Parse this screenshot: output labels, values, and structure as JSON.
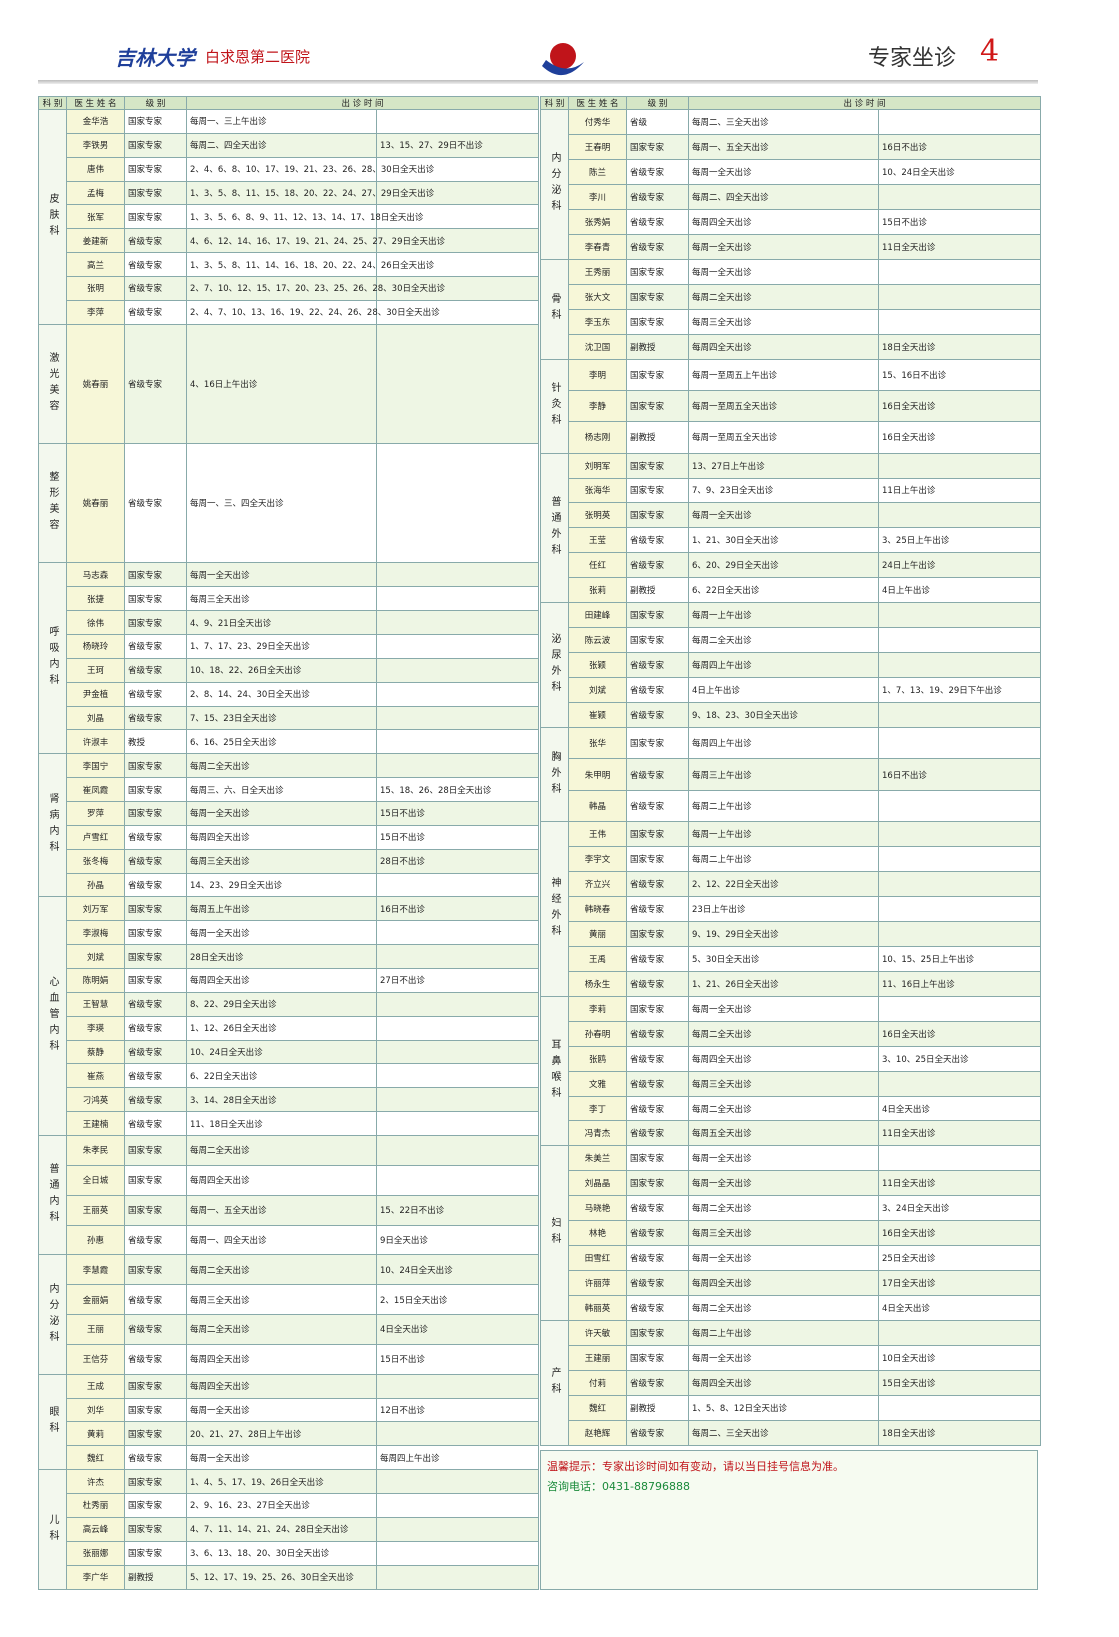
{
  "header": {
    "brand": "吉林大学",
    "hospital": "白求恩第二医院",
    "section": "专家坐诊",
    "page": "4"
  },
  "columns": [
    "科 别",
    "医 生 姓 名",
    "级 别",
    "出 诊 时 间"
  ],
  "left": [
    {
      "dept": "皮肤科",
      "rows": [
        [
          "金华浩",
          "国家专家",
          "每周一、三上午出诊",
          ""
        ],
        [
          "李铁男",
          "国家专家",
          "每周二、四全天出诊",
          "13、15、27、29日不出诊"
        ],
        [
          "唐伟",
          "国家专家",
          "2、4、6、8、10、17、19、21、23、26、28、30日全天出诊",
          ""
        ],
        [
          "孟梅",
          "国家专家",
          "1、3、5、8、11、15、18、20、22、24、27、29日全天出诊",
          ""
        ],
        [
          "张军",
          "国家专家",
          "1、3、5、6、8、9、11、12、13、14、17、18日全天出诊",
          ""
        ],
        [
          "姜建新",
          "省级专家",
          "4、6、12、14、16、17、19、21、24、25、27、29日全天出诊",
          ""
        ],
        [
          "高兰",
          "省级专家",
          "1、3、5、8、11、14、16、18、20、22、24、26日全天出诊",
          ""
        ],
        [
          "张明",
          "省级专家",
          "2、7、10、12、15、17、20、23、25、26、28、30日全天出诊",
          ""
        ],
        [
          "李萍",
          "省级专家",
          "2、4、7、10、13、16、19、22、24、26、28、30日全天出诊",
          ""
        ]
      ]
    },
    {
      "dept": "激光美容",
      "rows": [
        [
          "姚春丽",
          "省级专家",
          "4、16日上午出诊",
          ""
        ]
      ]
    },
    {
      "dept": "整形美容",
      "rows": [
        [
          "姚春丽",
          "省级专家",
          "每周一、三、四全天出诊",
          ""
        ]
      ]
    },
    {
      "dept": "呼吸内科",
      "rows": [
        [
          "马志森",
          "国家专家",
          "每周一全天出诊",
          ""
        ],
        [
          "张捷",
          "国家专家",
          "每周三全天出诊",
          ""
        ],
        [
          "徐伟",
          "国家专家",
          "4、9、21日全天出诊",
          ""
        ],
        [
          "杨晓玲",
          "省级专家",
          "1、7、17、23、29日全天出诊",
          ""
        ],
        [
          "王珂",
          "省级专家",
          "10、18、22、26日全天出诊",
          ""
        ],
        [
          "尹金植",
          "省级专家",
          "2、8、14、24、30日全天出诊",
          ""
        ],
        [
          "刘晶",
          "省级专家",
          "7、15、23日全天出诊",
          ""
        ],
        [
          "许淑丰",
          "教授",
          "6、16、25日全天出诊",
          ""
        ]
      ]
    },
    {
      "dept": "肾病内科",
      "rows": [
        [
          "李国宁",
          "国家专家",
          "每周二全天出诊",
          ""
        ],
        [
          "崔凤霞",
          "国家专家",
          "每周三、六、日全天出诊",
          "15、18、26、28日全天出诊"
        ],
        [
          "罗萍",
          "国家专家",
          "每周一全天出诊",
          "15日不出诊"
        ],
        [
          "卢雪红",
          "省级专家",
          "每周四全天出诊",
          "15日不出诊"
        ],
        [
          "张冬梅",
          "省级专家",
          "每周三全天出诊",
          "28日不出诊"
        ],
        [
          "孙晶",
          "省级专家",
          "14、23、29日全天出诊",
          ""
        ]
      ]
    },
    {
      "dept": "心血管内科",
      "rows": [
        [
          "刘万军",
          "国家专家",
          "每周五上午出诊",
          "16日不出诊"
        ],
        [
          "李淑梅",
          "国家专家",
          "每周一全天出诊",
          ""
        ],
        [
          "刘斌",
          "国家专家",
          "28日全天出诊",
          ""
        ],
        [
          "陈明娟",
          "国家专家",
          "每周四全天出诊",
          "27日不出诊"
        ],
        [
          "王智慧",
          "省级专家",
          "8、22、29日全天出诊",
          ""
        ],
        [
          "李瑛",
          "省级专家",
          "1、12、26日全天出诊",
          ""
        ],
        [
          "蔡静",
          "省级专家",
          "10、24日全天出诊",
          ""
        ],
        [
          "崔燕",
          "省级专家",
          "6、22日全天出诊",
          ""
        ],
        [
          "刁鸿英",
          "省级专家",
          "3、14、28日全天出诊",
          ""
        ],
        [
          "王建楠",
          "省级专家",
          "11、18日全天出诊",
          ""
        ]
      ]
    },
    {
      "dept": "普通内科",
      "rows": [
        [
          "朱孝民",
          "国家专家",
          "每周二全天出诊",
          ""
        ],
        [
          "全日城",
          "国家专家",
          "每周四全天出诊",
          ""
        ],
        [
          "王丽英",
          "国家专家",
          "每周一、五全天出诊",
          "15、22日不出诊"
        ],
        [
          "孙惠",
          "省级专家",
          "每周一、四全天出诊",
          "9日全天出诊"
        ]
      ]
    },
    {
      "dept": "内分泌科",
      "rows": [
        [
          "李慧霞",
          "国家专家",
          "每周二全天出诊",
          "10、24日全天出诊"
        ],
        [
          "金丽娟",
          "省级专家",
          "每周三全天出诊",
          "2、15日全天出诊"
        ],
        [
          "王丽",
          "省级专家",
          "每周二全天出诊",
          "4日全天出诊"
        ],
        [
          "王信芬",
          "省级专家",
          "每周四全天出诊",
          "15日不出诊"
        ]
      ]
    },
    {
      "dept": "眼科",
      "rows": [
        [
          "王成",
          "国家专家",
          "每周四全天出诊",
          ""
        ],
        [
          "刘华",
          "国家专家",
          "每周一全天出诊",
          "12日不出诊"
        ],
        [
          "黄莉",
          "国家专家",
          "20、21、27、28日上午出诊",
          ""
        ],
        [
          "魏红",
          "省级专家",
          "每周一全天出诊",
          "每周四上午出诊"
        ]
      ]
    },
    {
      "dept": "儿科",
      "rows": [
        [
          "许杰",
          "国家专家",
          "1、4、5、17、19、26日全天出诊",
          ""
        ],
        [
          "杜秀丽",
          "国家专家",
          "2、9、16、23、27日全天出诊",
          ""
        ],
        [
          "高云峰",
          "国家专家",
          "4、7、11、14、21、24、28日全天出诊",
          ""
        ],
        [
          "张丽娜",
          "国家专家",
          "3、6、13、18、20、30日全天出诊",
          ""
        ],
        [
          "李广华",
          "副教授",
          "5、12、17、19、25、26、30日全天出诊",
          ""
        ]
      ]
    }
  ],
  "right": [
    {
      "dept": "内分泌科",
      "rows": [
        [
          "付秀华",
          "省级",
          "每周二、三全天出诊",
          ""
        ],
        [
          "王春明",
          "国家专家",
          "每周一、五全天出诊",
          "16日不出诊"
        ],
        [
          "陈兰",
          "省级专家",
          "每周一全天出诊",
          "10、24日全天出诊"
        ],
        [
          "李川",
          "省级专家",
          "每周二、四全天出诊",
          ""
        ],
        [
          "张秀娟",
          "省级专家",
          "每周四全天出诊",
          "15日不出诊"
        ],
        [
          "李春青",
          "省级专家",
          "每周一全天出诊",
          "11日全天出诊"
        ]
      ]
    },
    {
      "dept": "骨科",
      "rows": [
        [
          "王秀丽",
          "国家专家",
          "每周一全天出诊",
          ""
        ],
        [
          "张大文",
          "国家专家",
          "每周二全天出诊",
          ""
        ],
        [
          "李玉东",
          "国家专家",
          "每周三全天出诊",
          ""
        ],
        [
          "沈卫国",
          "副教授",
          "每周四全天出诊",
          "18日全天出诊"
        ]
      ]
    },
    {
      "dept": "针灸科",
      "rows": [
        [
          "李明",
          "国家专家",
          "每周一至周五上午出诊",
          "15、16日不出诊"
        ],
        [
          "李静",
          "国家专家",
          "每周一至周五全天出诊",
          "16日全天出诊"
        ],
        [
          "杨志刚",
          "副教授",
          "每周一至周五全天出诊",
          "16日全天出诊"
        ]
      ]
    },
    {
      "dept": "普通外科",
      "rows": [
        [
          "刘明军",
          "国家专家",
          "13、27日上午出诊",
          ""
        ],
        [
          "张海华",
          "国家专家",
          "7、9、23日全天出诊",
          "11日上午出诊"
        ],
        [
          "张明英",
          "国家专家",
          "每周一全天出诊",
          ""
        ],
        [
          "王莹",
          "省级专家",
          "1、21、30日全天出诊",
          "3、25日上午出诊"
        ],
        [
          "任红",
          "省级专家",
          "6、20、29日全天出诊",
          "24日上午出诊"
        ],
        [
          "张莉",
          "副教授",
          "6、22日全天出诊",
          "4日上午出诊"
        ]
      ]
    },
    {
      "dept": "泌尿外科",
      "rows": [
        [
          "田建峰",
          "国家专家",
          "每周一上午出诊",
          ""
        ],
        [
          "陈云波",
          "国家专家",
          "每周二全天出诊",
          ""
        ],
        [
          "张颖",
          "省级专家",
          "每周四上午出诊",
          ""
        ],
        [
          "刘斌",
          "省级专家",
          "4日上午出诊",
          "1、7、13、19、29日下午出诊"
        ],
        [
          "崔颖",
          "省级专家",
          "9、18、23、30日全天出诊",
          ""
        ]
      ]
    },
    {
      "dept": "胸外科",
      "rows": [
        [
          "张华",
          "国家专家",
          "每周四上午出诊",
          ""
        ],
        [
          "朱甲明",
          "省级专家",
          "每周三上午出诊",
          "16日不出诊"
        ],
        [
          "韩晶",
          "省级专家",
          "每周二上午出诊",
          ""
        ]
      ]
    },
    {
      "dept": "神经外科",
      "rows": [
        [
          "王伟",
          "国家专家",
          "每周一上午出诊",
          ""
        ],
        [
          "李宇文",
          "国家专家",
          "每周二上午出诊",
          ""
        ],
        [
          "齐立兴",
          "省级专家",
          "2、12、22日全天出诊",
          ""
        ],
        [
          "韩晓春",
          "省级专家",
          "23日上午出诊",
          ""
        ],
        [
          "黄丽",
          "国家专家",
          "9、19、29日全天出诊",
          ""
        ],
        [
          "王禹",
          "省级专家",
          "5、30日全天出诊",
          "10、15、25日上午出诊"
        ],
        [
          "杨永生",
          "省级专家",
          "1、21、26日全天出诊",
          "11、16日上午出诊"
        ]
      ]
    },
    {
      "dept": "耳鼻喉科",
      "rows": [
        [
          "李莉",
          "国家专家",
          "每周一全天出诊",
          ""
        ],
        [
          "孙春明",
          "省级专家",
          "每周二全天出诊",
          "16日全天出诊"
        ],
        [
          "张鸥",
          "省级专家",
          "每周四全天出诊",
          "3、10、25日全天出诊"
        ],
        [
          "文雅",
          "省级专家",
          "每周三全天出诊",
          ""
        ],
        [
          "李丁",
          "省级专家",
          "每周二全天出诊",
          "4日全天出诊"
        ],
        [
          "冯青杰",
          "省级专家",
          "每周五全天出诊",
          "11日全天出诊"
        ]
      ]
    },
    {
      "dept": "妇科",
      "rows": [
        [
          "朱美兰",
          "国家专家",
          "每周一全天出诊",
          ""
        ],
        [
          "刘晶晶",
          "国家专家",
          "每周一全天出诊",
          "11日全天出诊"
        ],
        [
          "马晓艳",
          "省级专家",
          "每周二全天出诊",
          "3、24日全天出诊"
        ],
        [
          "林艳",
          "省级专家",
          "每周三全天出诊",
          "16日全天出诊"
        ],
        [
          "田雪红",
          "省级专家",
          "每周一全天出诊",
          "25日全天出诊"
        ],
        [
          "许丽萍",
          "省级专家",
          "每周四全天出诊",
          "17日全天出诊"
        ],
        [
          "韩丽英",
          "省级专家",
          "每周二全天出诊",
          "4日全天出诊"
        ]
      ]
    },
    {
      "dept": "产科",
      "rows": [
        [
          "许天敏",
          "国家专家",
          "每周二上午出诊",
          ""
        ],
        [
          "王建丽",
          "国家专家",
          "每周一全天出诊",
          "10日全天出诊"
        ],
        [
          "付莉",
          "省级专家",
          "每周四全天出诊",
          "15日全天出诊"
        ],
        [
          "魏红",
          "副教授",
          "1、5、8、12日全天出诊",
          ""
        ],
        [
          "赵艳辉",
          "省级专家",
          "每周二、三全天出诊",
          "18日全天出诊"
        ]
      ]
    }
  ],
  "footer": {
    "lines": [
      "温馨提示：专家出诊时间如有变动，请以当日挂号信息为准。",
      "咨询电话：0431-88796888"
    ]
  }
}
